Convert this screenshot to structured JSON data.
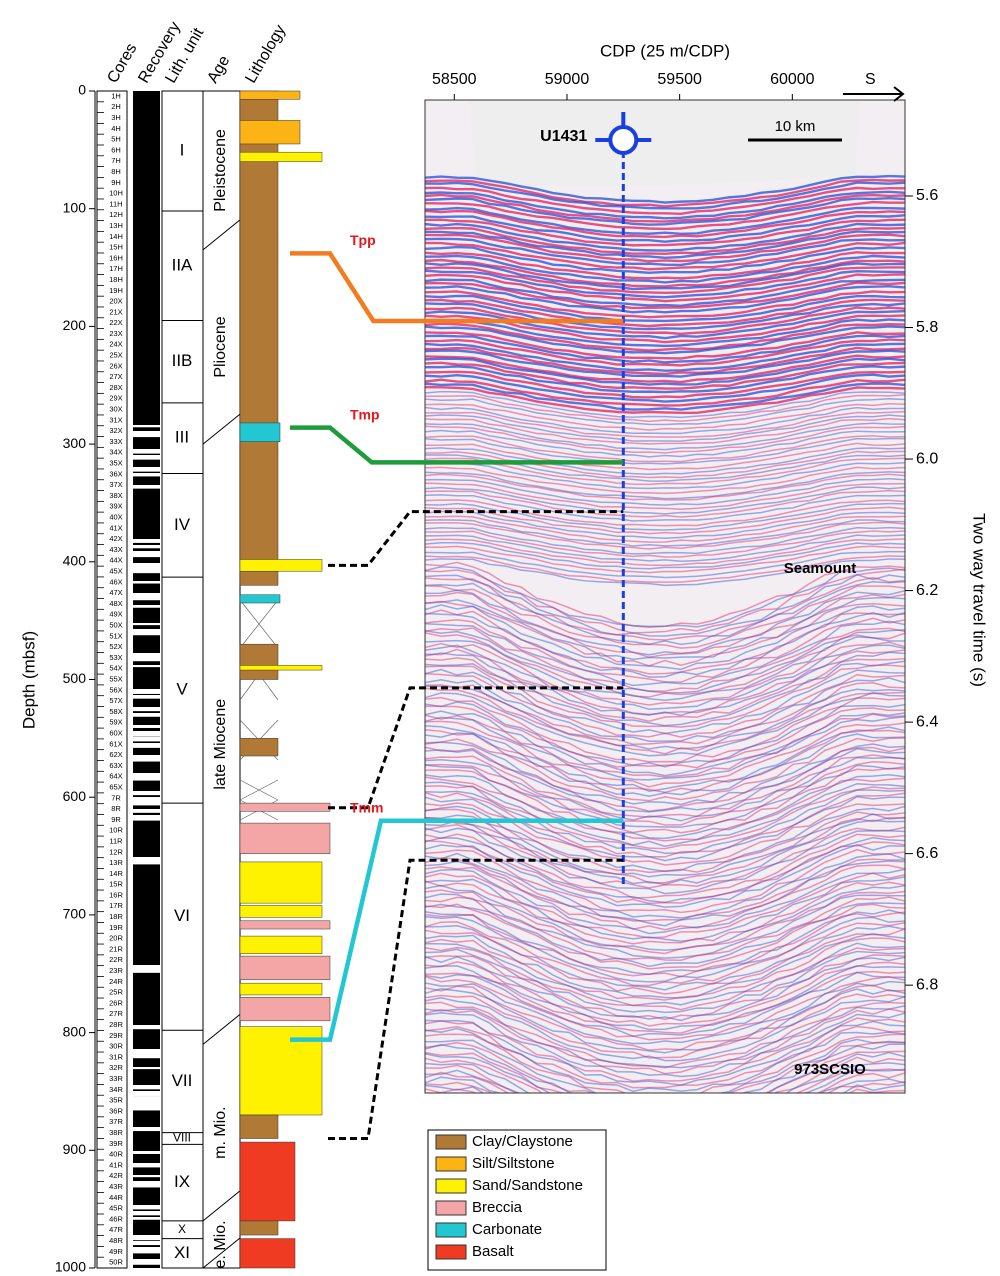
{
  "headers": [
    "Cores",
    "Recovery",
    "Lith. unit",
    "Age",
    "Lithology"
  ],
  "depth_axis": {
    "label": "Depth (mbsf)",
    "lim": [
      0,
      1000
    ],
    "ticks": [
      0,
      100,
      200,
      300,
      400,
      500,
      600,
      700,
      800,
      900,
      1000
    ]
  },
  "cores": [
    "1H",
    "2H",
    "3H",
    "4H",
    "5H",
    "6H",
    "7H",
    "8H",
    "9H",
    "10H",
    "11H",
    "12H",
    "13H",
    "14H",
    "15H",
    "16H",
    "17H",
    "18H",
    "19H",
    "20X",
    "21X",
    "22X",
    "23X",
    "24X",
    "25X",
    "26X",
    "27X",
    "28X",
    "29X",
    "30X",
    "31X",
    "32X",
    "33X",
    "34X",
    "35X",
    "36X",
    "37X",
    "38X",
    "39X",
    "40X",
    "41X",
    "42X",
    "43X",
    "44X",
    "45X",
    "46X",
    "47X",
    "48X",
    "49X",
    "50X",
    "51X",
    "52X",
    "53X",
    "54X",
    "55X",
    "56X",
    "57X",
    "58X",
    "59X",
    "60X",
    "61X",
    "62X",
    "63X",
    "64X",
    "65X",
    "7R",
    "8R",
    "9R",
    "10R",
    "11R",
    "12R",
    "13R",
    "14R",
    "15R",
    "16R",
    "17R",
    "18R",
    "19R",
    "20R",
    "21R",
    "22R",
    "23R",
    "24R",
    "25R",
    "26R",
    "27R",
    "28R",
    "29R",
    "30R",
    "31R",
    "32R",
    "33R",
    "34R",
    "35R",
    "36R",
    "37R",
    "38R",
    "39R",
    "40R",
    "41R",
    "42R",
    "43R",
    "44R",
    "45R",
    "46R",
    "47R",
    "48R",
    "49R",
    "50R"
  ],
  "units": [
    {
      "label": "I",
      "top": 0,
      "bottom": 102
    },
    {
      "label": "IIA",
      "top": 102,
      "bottom": 195
    },
    {
      "label": "IIB",
      "top": 195,
      "bottom": 265
    },
    {
      "label": "III",
      "top": 265,
      "bottom": 325
    },
    {
      "label": "IV",
      "top": 325,
      "bottom": 413
    },
    {
      "label": "V",
      "top": 413,
      "bottom": 605
    },
    {
      "label": "VI",
      "top": 605,
      "bottom": 798
    },
    {
      "label": "VII",
      "top": 798,
      "bottom": 885
    },
    {
      "label": "VIII",
      "top": 885,
      "bottom": 895
    },
    {
      "label": "IX",
      "top": 895,
      "bottom": 960
    },
    {
      "label": "X",
      "top": 960,
      "bottom": 975
    },
    {
      "label": "XI",
      "top": 975,
      "bottom": 1000
    }
  ],
  "ages": [
    {
      "label": "Pleistocene",
      "top": 0,
      "bottom": 135
    },
    {
      "label": "Pliocene",
      "top": 135,
      "bottom": 300
    },
    {
      "label": "late Miocene",
      "top": 300,
      "bottom": 810
    },
    {
      "label": "m. Mio.",
      "top": 810,
      "bottom": 960
    },
    {
      "label": "e. Mio.",
      "top": 960,
      "bottom": 1000
    }
  ],
  "legend": [
    {
      "label": "Clay/Claystone",
      "color": "#b07a36"
    },
    {
      "label": "Silt/Siltstone",
      "color": "#fbb414"
    },
    {
      "label": "Sand/Sandstone",
      "color": "#fff200"
    },
    {
      "label": "Breccia",
      "color": "#f4a6a6"
    },
    {
      "label": "Carbonate",
      "color": "#22c7d1"
    },
    {
      "label": "Basalt",
      "color": "#ee3b22"
    }
  ],
  "lithology": [
    {
      "lith": 0,
      "top": 0,
      "bottom": 420
    },
    {
      "lith": 1,
      "top": 0,
      "bottom": 7
    },
    {
      "lith": 1,
      "top": 25,
      "bottom": 45
    },
    {
      "lith": 2,
      "top": 52,
      "bottom": 60
    },
    {
      "lith": 4,
      "top": 282,
      "bottom": 298
    },
    {
      "lith": 2,
      "top": 398,
      "bottom": 408
    },
    {
      "lith": 4,
      "top": 428,
      "bottom": 435
    },
    {
      "lith": 0,
      "top": 470,
      "bottom": 500
    },
    {
      "lith": 2,
      "top": 488,
      "bottom": 492
    },
    {
      "lith": 0,
      "top": 550,
      "bottom": 565
    },
    {
      "lith": 3,
      "top": 605,
      "bottom": 612
    },
    {
      "lith": 3,
      "top": 622,
      "bottom": 648
    },
    {
      "lith": 2,
      "top": 655,
      "bottom": 690
    },
    {
      "lith": 2,
      "top": 692,
      "bottom": 702
    },
    {
      "lith": 3,
      "top": 705,
      "bottom": 712
    },
    {
      "lith": 2,
      "top": 718,
      "bottom": 733
    },
    {
      "lith": 3,
      "top": 735,
      "bottom": 755
    },
    {
      "lith": 2,
      "top": 758,
      "bottom": 768
    },
    {
      "lith": 3,
      "top": 770,
      "bottom": 790
    },
    {
      "lith": 2,
      "top": 795,
      "bottom": 870
    },
    {
      "lith": 0,
      "top": 870,
      "bottom": 890
    },
    {
      "lith": 5,
      "top": 893,
      "bottom": 960
    },
    {
      "lith": 0,
      "top": 960,
      "bottom": 972
    },
    {
      "lith": 5,
      "top": 975,
      "bottom": 1000
    }
  ],
  "seismic": {
    "cdp_axis": {
      "label": "CDP (25 m/CDP)",
      "lim": [
        58370,
        60500
      ],
      "ticks": [
        58500,
        59000,
        59500,
        60000
      ]
    },
    "twt_axis": {
      "label": "Two way travel time (s)",
      "lim": [
        5.454,
        6.964
      ],
      "ticks": [
        5.6,
        5.8,
        {
          "value": 6,
          "label": "6.0"
        },
        6.2,
        6.4,
        6.6,
        6.8
      ]
    },
    "site": {
      "label": "U1431",
      "cdp": 59250
    },
    "scale_bar": "10 km",
    "direction": "S",
    "annotations": [
      "Seamount",
      "973SCSIO"
    ]
  },
  "horizons": [
    {
      "label": "Tpp",
      "depth": 138,
      "twt": 5.79,
      "color": "#f47c20"
    },
    {
      "label": "Tmp",
      "depth": 286,
      "twt": 6.005,
      "color": "#1e9c3c"
    },
    {
      "depth": 403,
      "twt": 6.08,
      "color": "#000000"
    },
    {
      "depth": 609,
      "twt": 6.348,
      "color": "#000000"
    },
    {
      "label": "Tmm",
      "depth": 806,
      "twt": 6.55,
      "color": "#22c7d1"
    },
    {
      "depth": 890,
      "twt": 6.61,
      "color": "#000000"
    }
  ]
}
